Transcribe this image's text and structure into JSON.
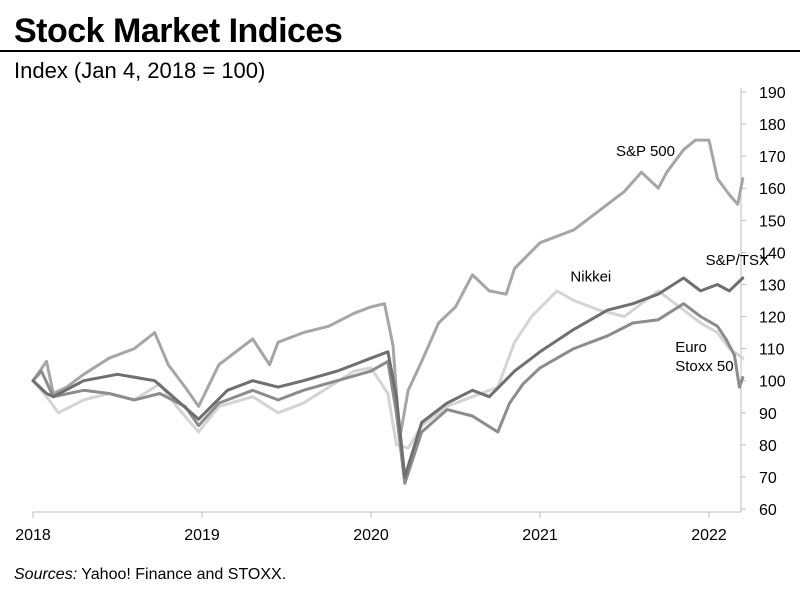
{
  "title": "Stock Market Indices",
  "subtitle": "Index (Jan 4, 2018 = 100)",
  "source_prefix": "Sources:",
  "source_text": " Yahoo! Finance and STOXX.",
  "chart_data": {
    "type": "line",
    "title": "Stock Market Indices",
    "subtitle": "Index (Jan 4, 2018 = 100)",
    "xlabel": "",
    "ylabel": "",
    "xlim": [
      2018.0,
      2022.2
    ],
    "ylim": [
      60,
      190
    ],
    "x_ticks": [
      "2018",
      "2019",
      "2020",
      "2021",
      "2022"
    ],
    "y_ticks": [
      60,
      70,
      80,
      90,
      100,
      110,
      120,
      130,
      140,
      150,
      160,
      170,
      180,
      190
    ],
    "y_axis_side": "right",
    "grid": false,
    "legend": "direct labels on lines",
    "series": [
      {
        "name": "S&P 500",
        "color": "#a6a6a6",
        "x": [
          2018.0,
          2018.08,
          2018.12,
          2018.2,
          2018.3,
          2018.45,
          2018.6,
          2018.72,
          2018.8,
          2018.9,
          2018.98,
          2019.1,
          2019.3,
          2019.4,
          2019.45,
          2019.6,
          2019.75,
          2019.9,
          2020.0,
          2020.08,
          2020.13,
          2020.17,
          2020.22,
          2020.3,
          2020.4,
          2020.5,
          2020.6,
          2020.7,
          2020.8,
          2020.85,
          2021.0,
          2021.2,
          2021.35,
          2021.5,
          2021.6,
          2021.7,
          2021.75,
          2021.85,
          2021.92,
          2022.0,
          2022.05,
          2022.12,
          2022.17,
          2022.2
        ],
        "values": [
          100,
          106,
          96,
          98,
          102,
          107,
          110,
          115,
          105,
          98,
          92,
          105,
          113,
          105,
          112,
          115,
          117,
          121,
          123,
          124,
          111,
          82,
          97,
          106,
          118,
          123,
          133,
          128,
          127,
          135,
          143,
          147,
          153,
          159,
          165,
          160,
          165,
          172,
          175,
          175,
          163,
          158,
          155,
          163
        ]
      },
      {
        "name": "S&P/TSX",
        "color": "#6f6f6f",
        "x": [
          2018.0,
          2018.08,
          2018.12,
          2018.3,
          2018.5,
          2018.72,
          2018.85,
          2018.98,
          2019.15,
          2019.3,
          2019.45,
          2019.6,
          2019.8,
          2020.0,
          2020.1,
          2020.15,
          2020.2,
          2020.3,
          2020.45,
          2020.6,
          2020.7,
          2020.85,
          2021.0,
          2021.2,
          2021.4,
          2021.55,
          2021.7,
          2021.85,
          2021.95,
          2022.05,
          2022.12,
          2022.2
        ],
        "values": [
          100,
          96,
          95,
          100,
          102,
          100,
          94,
          88,
          97,
          100,
          98,
          100,
          103,
          107,
          109,
          95,
          70,
          87,
          93,
          97,
          95,
          103,
          109,
          116,
          122,
          124,
          127,
          132,
          128,
          130,
          128,
          132
        ]
      },
      {
        "name": "Nikkei",
        "color": "#d4d4d4",
        "x": [
          2018.0,
          2018.08,
          2018.15,
          2018.3,
          2018.45,
          2018.6,
          2018.75,
          2018.85,
          2018.98,
          2019.1,
          2019.3,
          2019.45,
          2019.6,
          2019.75,
          2019.9,
          2020.0,
          2020.1,
          2020.15,
          2020.22,
          2020.3,
          2020.45,
          2020.6,
          2020.75,
          2020.85,
          2020.95,
          2021.1,
          2021.2,
          2021.35,
          2021.5,
          2021.7,
          2021.85,
          2021.95,
          2022.05,
          2022.12,
          2022.2
        ],
        "values": [
          100,
          95,
          90,
          94,
          96,
          94,
          99,
          92,
          84,
          92,
          95,
          90,
          93,
          98,
          103,
          104,
          96,
          80,
          79,
          86,
          92,
          95,
          98,
          112,
          120,
          128,
          125,
          122,
          120,
          128,
          122,
          118,
          115,
          110,
          107
        ]
      },
      {
        "name": "Euro Stoxx 50",
        "color": "#8c8c8c",
        "x": [
          2018.0,
          2018.05,
          2018.12,
          2018.3,
          2018.45,
          2018.6,
          2018.75,
          2018.9,
          2018.98,
          2019.1,
          2019.3,
          2019.45,
          2019.6,
          2019.8,
          2020.0,
          2020.1,
          2020.15,
          2020.2,
          2020.3,
          2020.45,
          2020.6,
          2020.75,
          2020.82,
          2020.9,
          2021.0,
          2021.2,
          2021.4,
          2021.55,
          2021.7,
          2021.85,
          2021.95,
          2022.05,
          2022.1,
          2022.15,
          2022.18,
          2022.2
        ],
        "values": [
          100,
          103,
          95,
          97,
          96,
          94,
          96,
          92,
          86,
          93,
          97,
          94,
          97,
          100,
          103,
          106,
          90,
          68,
          84,
          91,
          89,
          84,
          93,
          99,
          104,
          110,
          114,
          118,
          119,
          124,
          120,
          117,
          113,
          108,
          98,
          101
        ]
      }
    ],
    "annotations": [
      {
        "text": "S&P 500",
        "x": 2021.45,
        "y": 170
      },
      {
        "text": "S&P/TSX",
        "x": 2021.98,
        "y": 136
      },
      {
        "text": "Nikkei",
        "x": 2021.18,
        "y": 131
      },
      {
        "text": "Euro",
        "x": 2021.8,
        "y": 109
      },
      {
        "text": "Stoxx 50",
        "x": 2021.8,
        "y": 103
      }
    ]
  }
}
